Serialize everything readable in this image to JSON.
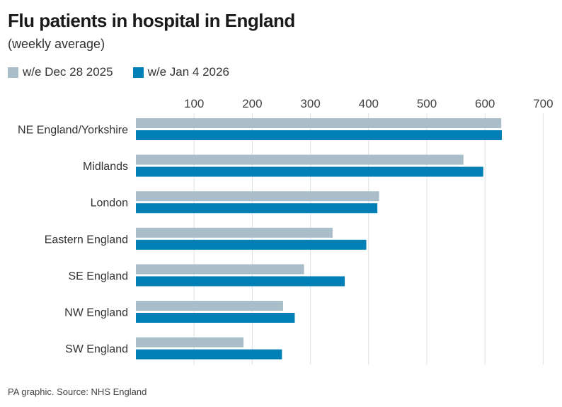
{
  "title": "Flu patients in hospital in England",
  "subtitle": "(weekly average)",
  "footer": "PA graphic. Source: NHS England",
  "chart_data": {
    "type": "bar",
    "orientation": "horizontal",
    "categories": [
      "NE England/Yorkshire",
      "Midlands",
      "London",
      "Eastern England",
      "SE England",
      "NW England",
      "SW England"
    ],
    "series": [
      {
        "name": "w/e Dec 28 2025",
        "color": "#a9bec9",
        "values": [
          628,
          563,
          418,
          338,
          289,
          253,
          185
        ]
      },
      {
        "name": "w/e Jan 4 2026",
        "color": "#0080b7",
        "values": [
          629,
          597,
          415,
          396,
          359,
          273,
          251
        ]
      }
    ],
    "xlim": [
      0,
      700
    ],
    "xticks": [
      "100",
      "200",
      "300",
      "400",
      "500",
      "600",
      "700"
    ],
    "xtick_values": [
      100,
      200,
      300,
      400,
      500,
      600,
      700
    ],
    "grid": true,
    "legend": "top-left",
    "xlabel": "",
    "ylabel": ""
  }
}
